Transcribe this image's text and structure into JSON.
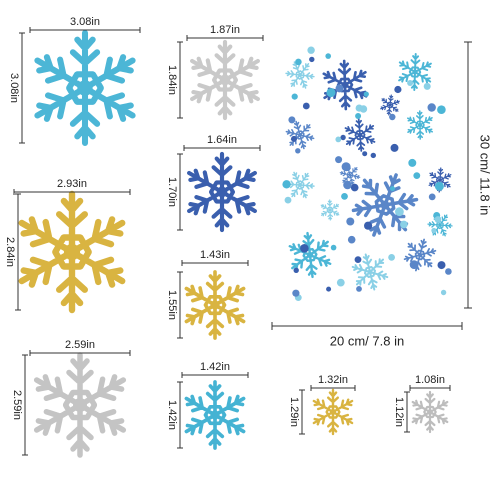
{
  "items": [
    {
      "width": "3.08in",
      "height": "3.08in"
    },
    {
      "width": "2.93in",
      "height": "2.84in"
    },
    {
      "width": "2.59in",
      "height": "2.59in"
    },
    {
      "width": "1.87in",
      "height": "1.84in"
    },
    {
      "width": "1.64in",
      "height": "1.70in"
    },
    {
      "width": "1.43in",
      "height": "1.55in"
    },
    {
      "width": "1.42in",
      "height": "1.42in"
    },
    {
      "width": "1.32in",
      "height": "1.29in"
    },
    {
      "width": "1.08in",
      "height": "1.12in"
    }
  ],
  "sheet": {
    "width": "20 cm/ 7.8 in",
    "height": "30 cm/ 11.8 in"
  }
}
